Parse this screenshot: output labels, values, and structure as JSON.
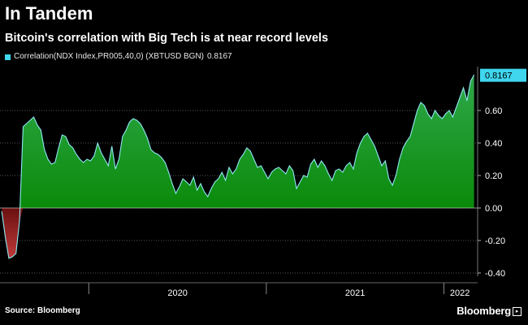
{
  "header": {
    "title": "In Tandem",
    "subtitle": "Bitcoin's correlation with Big Tech is at near record levels"
  },
  "footer": {
    "source": "Source: Bloomberg",
    "brand": "Bloomberg"
  },
  "chart_data": {
    "type": "area",
    "title": "In Tandem",
    "subtitle": "Bitcoin's correlation with Big Tech is at near record levels",
    "legend": [
      {
        "label": "Correlation(NDX Index,PR005,40,0) (XBTUSD BGN)",
        "value": "0.8167",
        "color": "#3fd6ee"
      }
    ],
    "last_value": 0.8167,
    "last_value_label": "0.8167",
    "ylim": [
      -0.42,
      0.86
    ],
    "yticks": [
      -0.4,
      -0.2,
      0.0,
      0.2,
      0.4,
      0.6
    ],
    "ytick_labels": [
      "-0.40",
      "-0.20",
      "0.00",
      "0.20",
      "0.40",
      "0.60"
    ],
    "xlim": [
      2019.5,
      2022.19
    ],
    "x_year_boundaries": [
      2020.0,
      2021.0,
      2022.0
    ],
    "xticks": [
      2020.5,
      2021.5,
      2022.09
    ],
    "xtick_labels": [
      "2020",
      "2021",
      "2022"
    ],
    "colors": {
      "positive": "#0d8a0d",
      "negative": "#8c1414",
      "line": "#8ee8f2",
      "grid": "#555555"
    },
    "series": [
      {
        "name": "Correlation(NDX Index,PR005,40,0) (XBTUSD BGN)",
        "x": [
          2019.51,
          2019.53,
          2019.55,
          2019.57,
          2019.59,
          2019.61,
          2019.63,
          2019.65,
          2019.67,
          2019.69,
          2019.71,
          2019.73,
          2019.75,
          2019.77,
          2019.79,
          2019.81,
          2019.83,
          2019.85,
          2019.87,
          2019.89,
          2019.91,
          2019.93,
          2019.95,
          2019.97,
          2019.99,
          2020.01,
          2020.03,
          2020.05,
          2020.07,
          2020.09,
          2020.11,
          2020.13,
          2020.15,
          2020.17,
          2020.19,
          2020.21,
          2020.23,
          2020.25,
          2020.27,
          2020.29,
          2020.31,
          2020.33,
          2020.35,
          2020.37,
          2020.39,
          2020.41,
          2020.43,
          2020.45,
          2020.47,
          2020.49,
          2020.51,
          2020.53,
          2020.55,
          2020.57,
          2020.59,
          2020.61,
          2020.63,
          2020.65,
          2020.67,
          2020.69,
          2020.71,
          2020.73,
          2020.75,
          2020.77,
          2020.79,
          2020.81,
          2020.83,
          2020.85,
          2020.87,
          2020.89,
          2020.91,
          2020.93,
          2020.95,
          2020.97,
          2020.99,
          2021.01,
          2021.03,
          2021.05,
          2021.07,
          2021.09,
          2021.11,
          2021.13,
          2021.15,
          2021.17,
          2021.19,
          2021.21,
          2021.23,
          2021.25,
          2021.27,
          2021.29,
          2021.31,
          2021.33,
          2021.35,
          2021.37,
          2021.39,
          2021.41,
          2021.43,
          2021.45,
          2021.47,
          2021.49,
          2021.51,
          2021.53,
          2021.55,
          2021.57,
          2021.59,
          2021.61,
          2021.63,
          2021.65,
          2021.67,
          2021.69,
          2021.71,
          2021.73,
          2021.75,
          2021.77,
          2021.79,
          2021.81,
          2021.83,
          2021.85,
          2021.87,
          2021.89,
          2021.91,
          2021.93,
          2021.95,
          2021.97,
          2021.99,
          2022.01,
          2022.03,
          2022.05,
          2022.07,
          2022.09,
          2022.11,
          2022.13,
          2022.15,
          2022.17
        ],
        "y": [
          -0.02,
          -0.18,
          -0.31,
          -0.3,
          -0.28,
          -0.08,
          0.5,
          0.52,
          0.54,
          0.56,
          0.51,
          0.48,
          0.36,
          0.3,
          0.27,
          0.28,
          0.37,
          0.45,
          0.44,
          0.39,
          0.37,
          0.33,
          0.3,
          0.28,
          0.3,
          0.29,
          0.32,
          0.4,
          0.34,
          0.3,
          0.26,
          0.38,
          0.24,
          0.3,
          0.44,
          0.48,
          0.53,
          0.55,
          0.54,
          0.52,
          0.48,
          0.43,
          0.36,
          0.34,
          0.33,
          0.31,
          0.28,
          0.22,
          0.15,
          0.09,
          0.13,
          0.18,
          0.16,
          0.14,
          0.19,
          0.11,
          0.15,
          0.1,
          0.07,
          0.12,
          0.16,
          0.18,
          0.22,
          0.17,
          0.25,
          0.21,
          0.24,
          0.3,
          0.33,
          0.37,
          0.35,
          0.3,
          0.25,
          0.26,
          0.22,
          0.18,
          0.22,
          0.24,
          0.25,
          0.23,
          0.21,
          0.26,
          0.23,
          0.12,
          0.16,
          0.2,
          0.19,
          0.27,
          0.3,
          0.25,
          0.29,
          0.26,
          0.21,
          0.17,
          0.23,
          0.24,
          0.22,
          0.26,
          0.28,
          0.24,
          0.34,
          0.4,
          0.44,
          0.46,
          0.42,
          0.38,
          0.32,
          0.26,
          0.29,
          0.18,
          0.14,
          0.2,
          0.3,
          0.37,
          0.41,
          0.44,
          0.52,
          0.6,
          0.65,
          0.63,
          0.58,
          0.55,
          0.6,
          0.57,
          0.55,
          0.58,
          0.6,
          0.56,
          0.62,
          0.68,
          0.74,
          0.66,
          0.78,
          0.82
        ]
      }
    ]
  }
}
